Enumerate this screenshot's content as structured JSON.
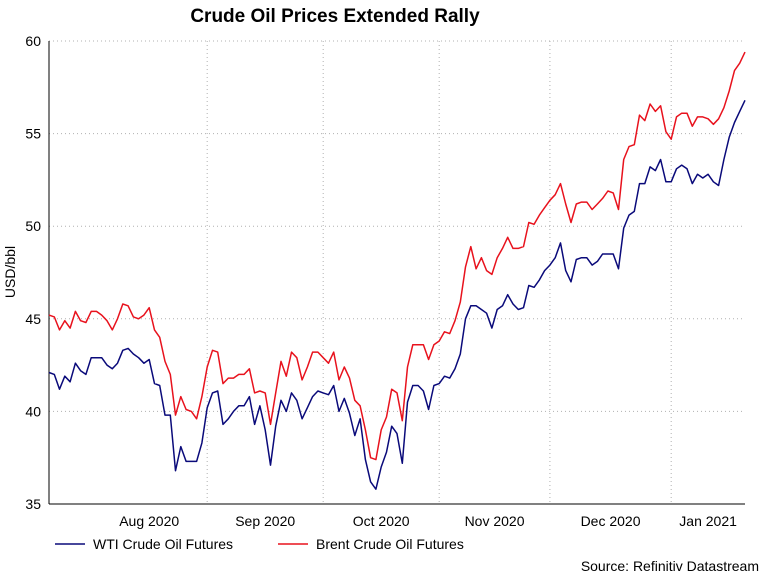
{
  "chart_data": {
    "type": "line",
    "title": "Crude Oil Prices Extended Rally",
    "xlabel": "",
    "ylabel": "USD/bbl",
    "ylim": [
      35,
      60
    ],
    "yticks": [
      35,
      40,
      45,
      50,
      55,
      60
    ],
    "xtick_labels": [
      "Aug 2020",
      "Sep 2020",
      "Oct 2020",
      "Nov 2020",
      "Dec 2020",
      "Jan 2021"
    ],
    "x_unit": "trading day index (0 = 21 Jul 2020)",
    "xlim": [
      0,
      132
    ],
    "month_starts": [
      8,
      30,
      52,
      74,
      95,
      118
    ],
    "grid": true,
    "legend_position": "bottom",
    "source": "Source: Refinitiv Datastream",
    "series": [
      {
        "name": "WTI Crude Oil Futures",
        "color": "#0a0a7a",
        "values": [
          42.1,
          42.0,
          41.2,
          41.9,
          41.6,
          42.6,
          42.2,
          42.0,
          42.9,
          42.9,
          42.9,
          42.5,
          42.3,
          42.6,
          43.3,
          43.4,
          43.1,
          42.9,
          42.6,
          42.8,
          41.5,
          41.4,
          39.8,
          39.8,
          36.8,
          38.1,
          37.3,
          37.3,
          37.3,
          38.3,
          40.2,
          41.0,
          41.1,
          39.3,
          39.6,
          40.0,
          40.3,
          40.3,
          40.8,
          39.3,
          40.3,
          39.0,
          37.1,
          39.2,
          40.6,
          40.0,
          41.0,
          40.6,
          39.6,
          40.2,
          40.8,
          41.1,
          41.0,
          40.9,
          41.4,
          40.0,
          40.7,
          39.9,
          38.7,
          39.6,
          37.4,
          36.2,
          35.8,
          37.0,
          37.8,
          39.2,
          38.8,
          37.2,
          40.5,
          41.4,
          41.4,
          41.1,
          40.1,
          41.4,
          41.5,
          41.9,
          41.8,
          42.3,
          43.1,
          45.0,
          45.7,
          45.7,
          45.5,
          45.3,
          44.5,
          45.5,
          45.7,
          46.3,
          45.8,
          45.5,
          45.6,
          46.8,
          46.7,
          47.1,
          47.6,
          47.9,
          48.3,
          49.1,
          47.6,
          47.0,
          48.2,
          48.3,
          48.3,
          47.9,
          48.1,
          48.5,
          48.5,
          48.5,
          47.7,
          49.9,
          50.6,
          50.8,
          52.3,
          52.3,
          53.2,
          53.0,
          53.6,
          52.4,
          52.4,
          53.1,
          53.3,
          53.1,
          52.3,
          52.8,
          52.6,
          52.8,
          52.4,
          52.2,
          53.6,
          54.8,
          55.6,
          56.2,
          56.8
        ]
      },
      {
        "name": "Brent Crude Oil Futures",
        "color": "#e8121d",
        "values": [
          45.2,
          45.1,
          44.4,
          44.9,
          44.5,
          45.4,
          44.9,
          44.8,
          45.4,
          45.4,
          45.2,
          44.9,
          44.4,
          45.0,
          45.8,
          45.7,
          45.1,
          45.0,
          45.2,
          45.6,
          44.4,
          44.0,
          42.7,
          42.0,
          39.8,
          40.8,
          40.1,
          40.0,
          39.6,
          40.8,
          42.4,
          43.3,
          43.2,
          41.5,
          41.8,
          41.8,
          42.0,
          42.0,
          42.3,
          41.0,
          41.1,
          41.0,
          39.3,
          41.0,
          42.7,
          41.9,
          43.2,
          42.9,
          41.7,
          42.4,
          43.2,
          43.2,
          42.9,
          42.6,
          43.2,
          41.7,
          42.4,
          41.8,
          40.6,
          40.3,
          39.0,
          37.5,
          37.4,
          39.0,
          39.7,
          41.2,
          41.0,
          39.5,
          42.4,
          43.6,
          43.6,
          43.6,
          42.8,
          43.6,
          43.8,
          44.3,
          44.2,
          44.9,
          45.9,
          47.8,
          48.9,
          47.7,
          48.3,
          47.6,
          47.4,
          48.3,
          48.8,
          49.4,
          48.8,
          48.8,
          48.9,
          50.2,
          50.1,
          50.6,
          51.0,
          51.4,
          51.7,
          52.3,
          51.2,
          50.2,
          51.2,
          51.3,
          51.3,
          50.9,
          51.2,
          51.5,
          51.9,
          51.8,
          50.9,
          53.6,
          54.3,
          54.4,
          56.0,
          55.7,
          56.6,
          56.2,
          56.5,
          55.1,
          54.7,
          55.9,
          56.1,
          56.1,
          55.4,
          55.9,
          55.9,
          55.8,
          55.5,
          55.8,
          56.4,
          57.3,
          58.4,
          58.8,
          59.4
        ]
      }
    ]
  }
}
